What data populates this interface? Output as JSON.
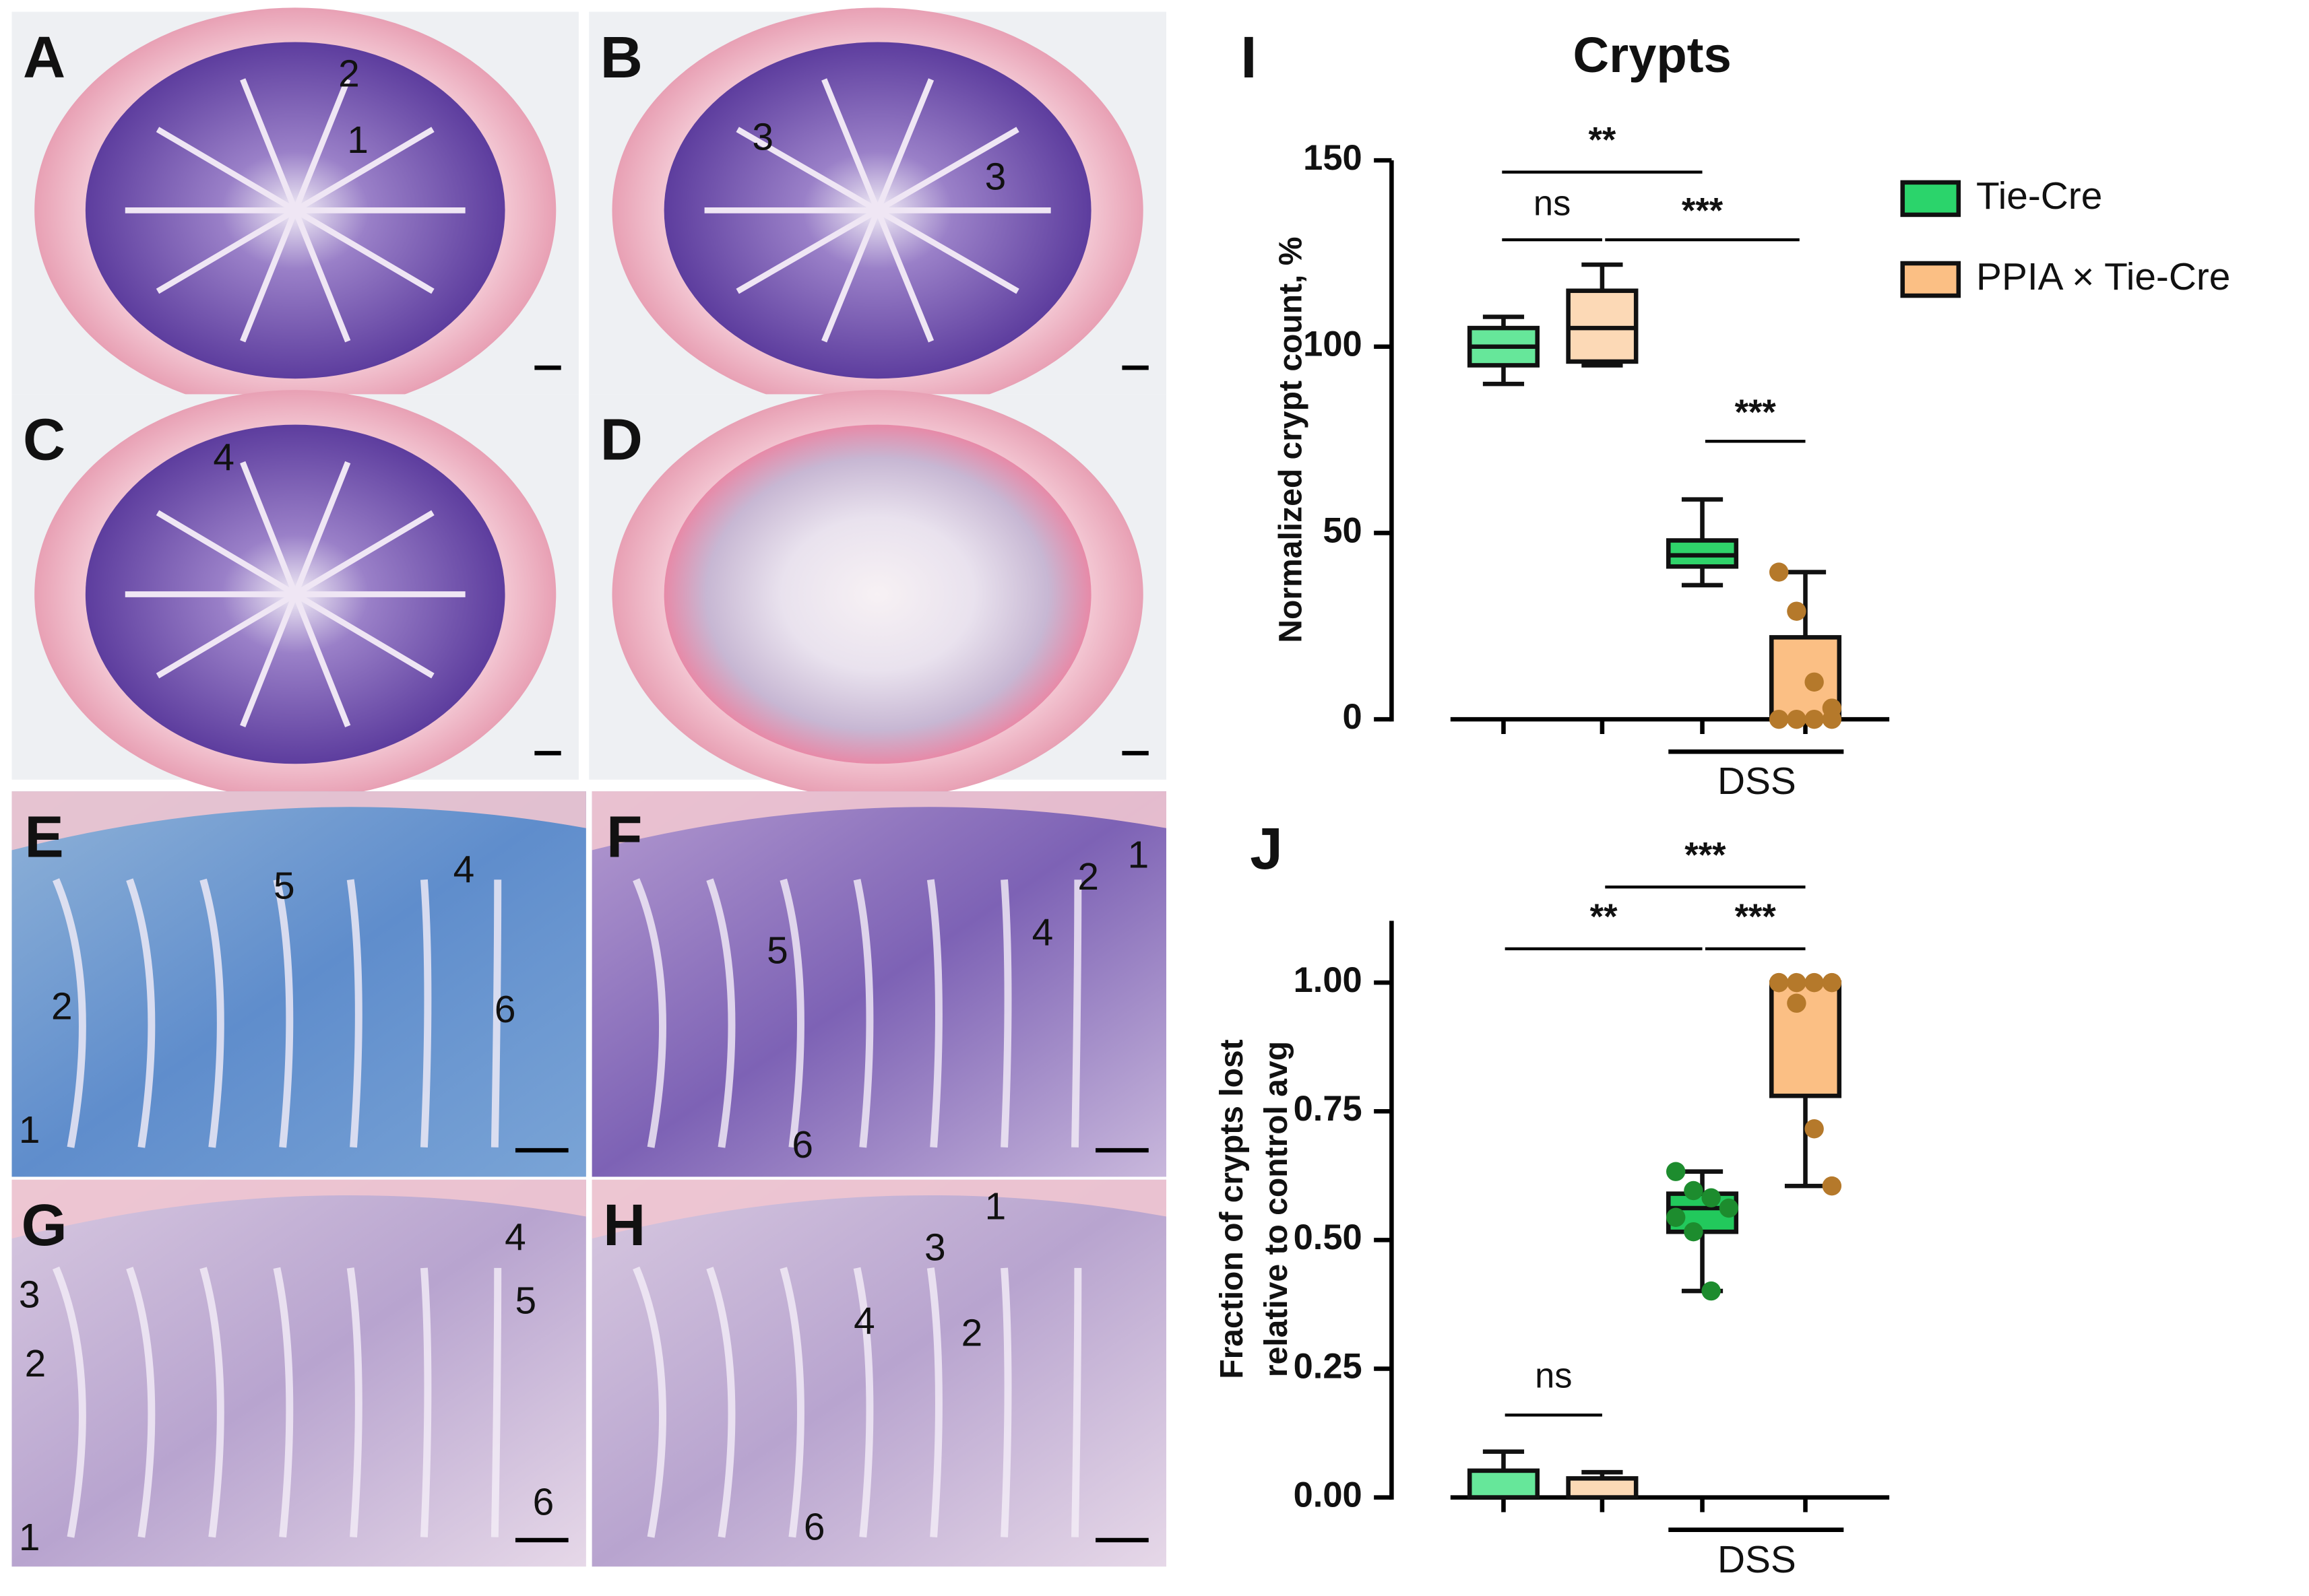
{
  "panels": [
    {
      "label": "A",
      "annotations": [
        "2",
        "1"
      ]
    },
    {
      "label": "B",
      "annotations": [
        "3",
        "3"
      ]
    },
    {
      "label": "C",
      "annotations": [
        "4"
      ]
    },
    {
      "label": "D",
      "annotations": []
    },
    {
      "label": "E",
      "annotations": [
        "5",
        "4",
        "2",
        "6",
        "1"
      ]
    },
    {
      "label": "F",
      "annotations": [
        "1",
        "2",
        "4",
        "5",
        "6"
      ]
    },
    {
      "label": "G",
      "annotations": [
        "4",
        "3",
        "5",
        "2",
        "6",
        "1"
      ]
    },
    {
      "label": "H",
      "annotations": [
        "1",
        "3",
        "4",
        "2",
        "6"
      ]
    }
  ],
  "chart_data": [
    {
      "type": "box",
      "panel": "I",
      "title": "Crypts",
      "ylabel": [
        "Normalized crypt count, %"
      ],
      "ylim": [
        0,
        150
      ],
      "yticks": [
        0,
        50,
        100,
        150
      ],
      "group_label": "DSS",
      "legend": "right",
      "series": [
        {
          "name": "Tie-Cre",
          "color": "#2bd46b",
          "boxes": [
            {
              "color": "#66e79a",
              "min": 90,
              "q1": 95,
              "median": 100,
              "q3": 105,
              "max": 108
            },
            {
              "color": "#2fd36a",
              "min": 36,
              "q1": 41,
              "median": 44,
              "q3": 48,
              "max": 59
            }
          ]
        },
        {
          "name": "PPIA × Tie-Cre",
          "color": "#fbbf84",
          "boxes": [
            {
              "color": "#fcd9b6",
              "min": 95,
              "q1": 96,
              "median": 105,
              "q3": 115,
              "max": 122
            },
            {
              "color": "#fbbf84",
              "min": 0,
              "q1": 0,
              "median": 0,
              "q3": 22,
              "max": 39.5,
              "point_color": "#b5792b",
              "points": [
                39.5,
                29,
                10,
                3,
                0,
                0,
                0,
                0
              ]
            }
          ]
        }
      ],
      "annotations": [
        "**",
        "ns",
        "***",
        "***"
      ]
    },
    {
      "type": "box",
      "panel": "J",
      "ylabel": [
        "Fraction of crypts lost",
        "relative to control avg"
      ],
      "ylim": [
        0,
        1.12
      ],
      "yticks": [
        {
          "value": 0,
          "label": "0.00"
        },
        {
          "value": 0.25,
          "label": "0.25"
        },
        {
          "value": 0.5,
          "label": "0.50"
        },
        {
          "value": 0.75,
          "label": "0.75"
        },
        {
          "value": 1,
          "label": "1.00"
        }
      ],
      "group_label": "DSS",
      "series": [
        {
          "name": "Tie-Cre",
          "color": "#2bd46b",
          "boxes": [
            {
              "color": "#66e79a",
              "min": 0,
              "q1": 0,
              "median": 0,
              "q3": 0.052,
              "max": 0.089
            },
            {
              "color": "#22c95c",
              "min": 0.401,
              "q1": 0.516,
              "median": 0.562,
              "q3": 0.59,
              "max": 0.633,
              "point_color": "#1d8c2e",
              "points": [
                0.633,
                0.596,
                0.582,
                0.562,
                0.544,
                0.516,
                0.401
              ]
            }
          ]
        },
        {
          "name": "PPIA × Tie-Cre",
          "color": "#fbbf84",
          "boxes": [
            {
              "color": "#fcd9b6",
              "min": 0,
              "q1": 0,
              "median": 0,
              "q3": 0.037,
              "max": 0.049
            },
            {
              "color": "#fbbf84",
              "min": 0.605,
              "q1": 0.78,
              "median": 1,
              "q3": 1,
              "max": 1,
              "point_color": "#b5792b",
              "points": [
                1,
                1,
                1,
                1,
                1,
                0.96,
                0.716,
                0.605
              ]
            }
          ]
        }
      ],
      "annotations": [
        "***",
        "**",
        "***",
        "ns"
      ]
    }
  ]
}
